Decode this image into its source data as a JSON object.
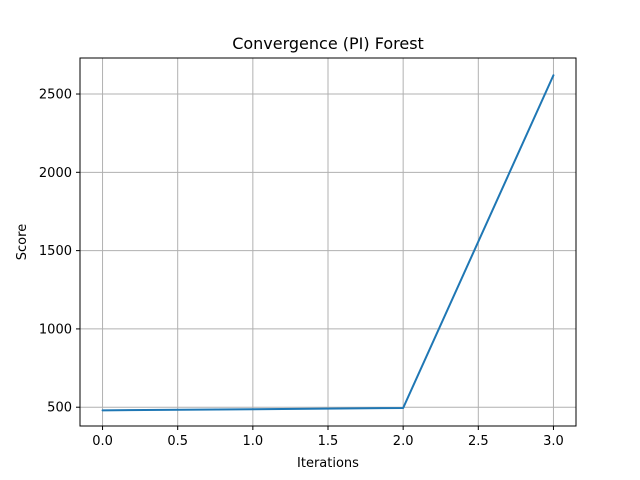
{
  "chart_data": {
    "type": "line",
    "title": "Convergence (PI) Forest",
    "xlabel": "Iterations",
    "ylabel": "Score",
    "xlim": [
      -0.15,
      3.15
    ],
    "ylim": [
      380,
      2730
    ],
    "x_ticks": [
      0.0,
      0.5,
      1.0,
      1.5,
      2.0,
      2.5,
      3.0
    ],
    "x_tick_labels": [
      "0.0",
      "0.5",
      "1.0",
      "1.5",
      "2.0",
      "2.5",
      "3.0"
    ],
    "y_ticks": [
      500,
      1000,
      1500,
      2000,
      2500
    ],
    "y_tick_labels": [
      "500",
      "1000",
      "1500",
      "2000",
      "2500"
    ],
    "grid": true,
    "series": [
      {
        "color": "#1f77b4",
        "x": [
          0,
          1,
          2,
          3
        ],
        "y": [
          480,
          487,
          495,
          2620
        ]
      }
    ]
  }
}
